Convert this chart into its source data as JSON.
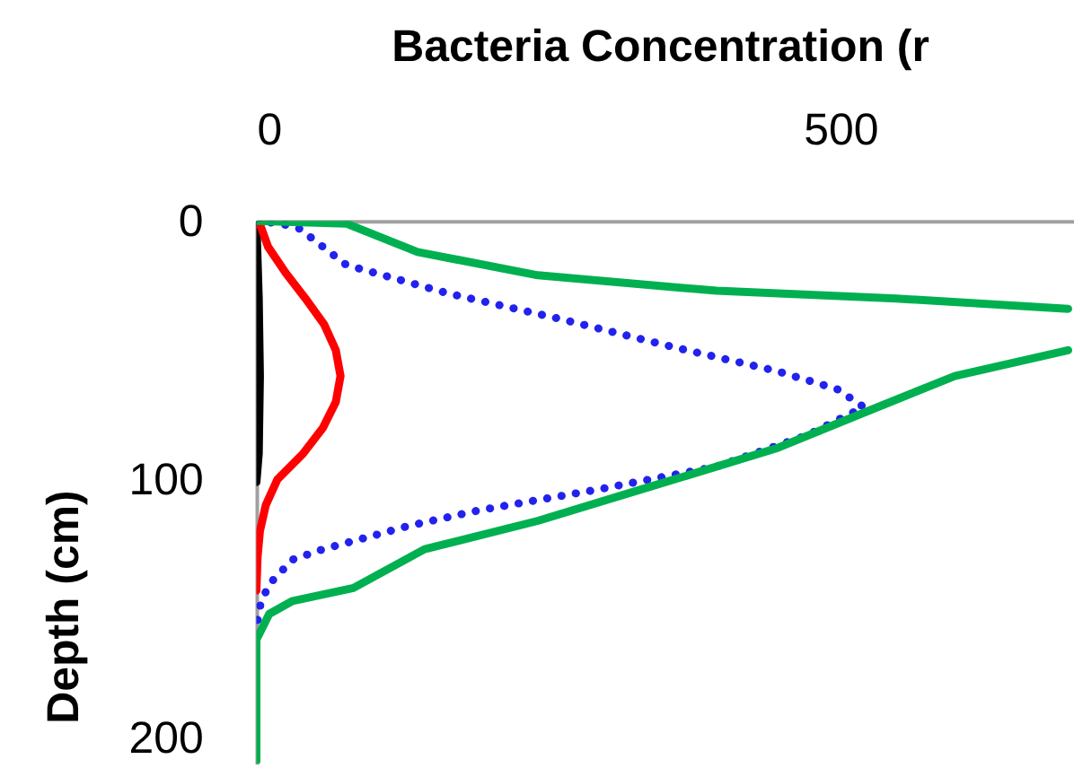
{
  "chart_data": {
    "type": "line",
    "xlabel": "Bacteria Concentration (r",
    "ylabel": "Depth (cm)",
    "xlim": [
      0,
      700
    ],
    "xticks": [
      0,
      500
    ],
    "ylim": [
      210,
      0
    ],
    "yticks": [
      0,
      100,
      200
    ],
    "grid": false,
    "marker": "none",
    "series": [
      {
        "color": "#000000",
        "line_style": "solid",
        "x": [
          0,
          2,
          3,
          2,
          0
        ],
        "values": [
          0,
          30,
          60,
          90,
          101
        ]
      },
      {
        "color": "#ff0000",
        "line_style": "solid",
        "x": [
          2,
          10,
          25,
          42,
          58,
          68,
          72,
          68,
          57,
          40,
          18,
          8,
          3,
          1,
          0
        ],
        "values": [
          0,
          10,
          20,
          30,
          40,
          50,
          60,
          70,
          80,
          90,
          100,
          110,
          120,
          130,
          143
        ]
      },
      {
        "color": "#2222ee",
        "line_style": "dotted",
        "x": [
          0,
          21,
          37,
          77,
          164,
          261,
          359,
          445,
          497,
          520,
          471,
          394,
          291,
          190,
          130,
          98,
          57,
          31,
          12,
          4,
          0
        ],
        "values": [
          0,
          1,
          3,
          17,
          28,
          38,
          49,
          58,
          65,
          72,
          83,
          95,
          104,
          112,
          118,
          122,
          127,
          131,
          140,
          147,
          157
        ]
      },
      {
        "color": "#00b050",
        "line_style": "solid",
        "x": [
          0,
          77,
          138,
          241,
          394,
          548,
          695
        ],
        "values": [
          0,
          1,
          12,
          21,
          27,
          30,
          34
        ]
      },
      {
        "color": "#00b050",
        "line_style": "solid",
        "x": [
          695,
          598,
          521,
          445,
          343,
          241,
          144,
          83,
          31,
          11,
          0,
          0
        ],
        "values": [
          50,
          60,
          74,
          88,
          102,
          116,
          127,
          142,
          147,
          152,
          162,
          209
        ]
      }
    ]
  }
}
